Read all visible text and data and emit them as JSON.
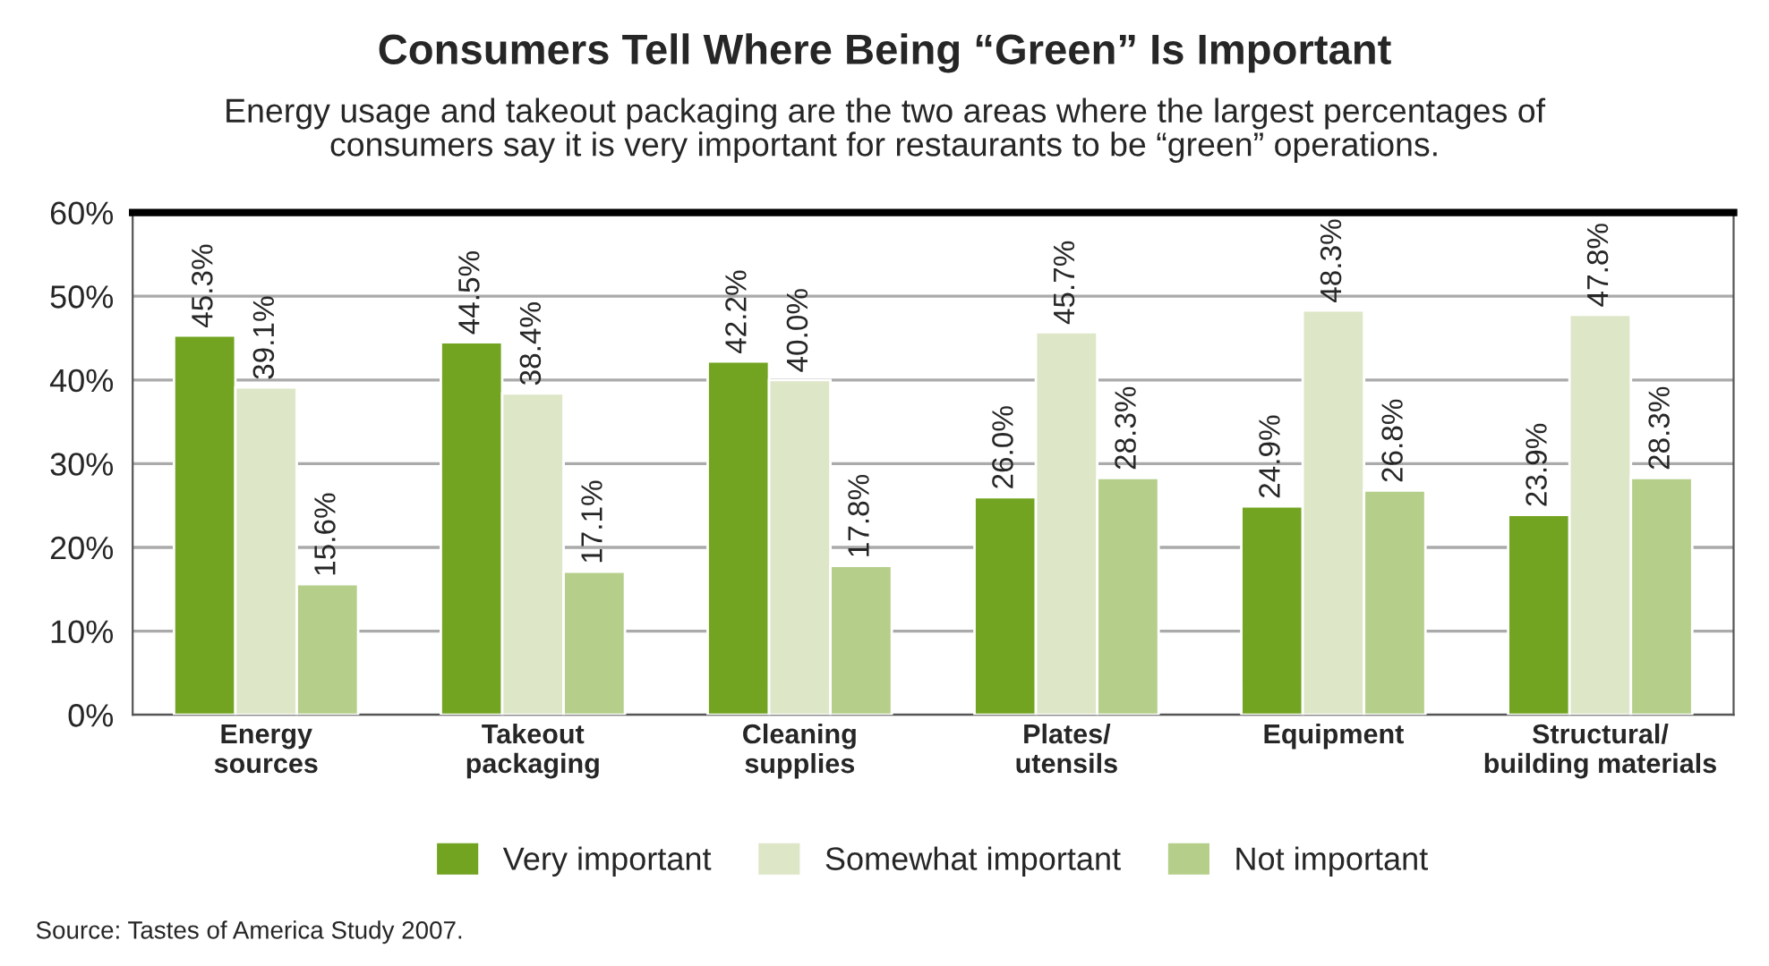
{
  "chart_data": {
    "type": "bar",
    "title": "Consumers Tell Where Being “Green” Is Important",
    "subtitle": "Energy usage and takeout packaging are the two areas where the largest percentages of\nconsumers say it is very important for restaurants to be “green” operations.",
    "categories": [
      "Energy\nsources",
      "Takeout\npackaging",
      "Cleaning\nsupplies",
      "Plates/\nutensils",
      "Equipment",
      "Structural/\nbuilding materials"
    ],
    "series": [
      {
        "name": "Very important",
        "color": "#72a421",
        "values": [
          45.3,
          44.5,
          42.2,
          26.0,
          24.9,
          23.9
        ]
      },
      {
        "name": "Somewhat important",
        "color": "#dde6c6",
        "values": [
          39.1,
          38.4,
          40.0,
          45.7,
          48.3,
          47.8
        ]
      },
      {
        "name": "Not important",
        "color": "#b5cf8a",
        "values": [
          15.6,
          17.1,
          17.8,
          28.3,
          26.8,
          28.3
        ]
      }
    ],
    "ylim": [
      0,
      60
    ],
    "yticks": [
      {
        "value": 0,
        "label": "0%"
      },
      {
        "value": 10,
        "label": "10%"
      },
      {
        "value": 20,
        "label": "20%"
      },
      {
        "value": 30,
        "label": "30%"
      },
      {
        "value": 40,
        "label": "40%"
      },
      {
        "value": 50,
        "label": "50%"
      },
      {
        "value": 60,
        "label": "60%"
      }
    ],
    "grid": "y",
    "legend": "bottom",
    "value_labels": [
      [
        "45.3%",
        "44.5%",
        "42.2%",
        "26.0%",
        "24.9%",
        "23.9%"
      ],
      [
        "39.1%",
        "38.4%",
        "40.0%",
        "45.7%",
        "48.3%",
        "47.8%"
      ],
      [
        "15.6%",
        "17.1%",
        "17.8%",
        "28.3%",
        "26.8%",
        "28.3%"
      ]
    ],
    "annotations": [
      "Source: Tastes of America Study 2007."
    ]
  }
}
